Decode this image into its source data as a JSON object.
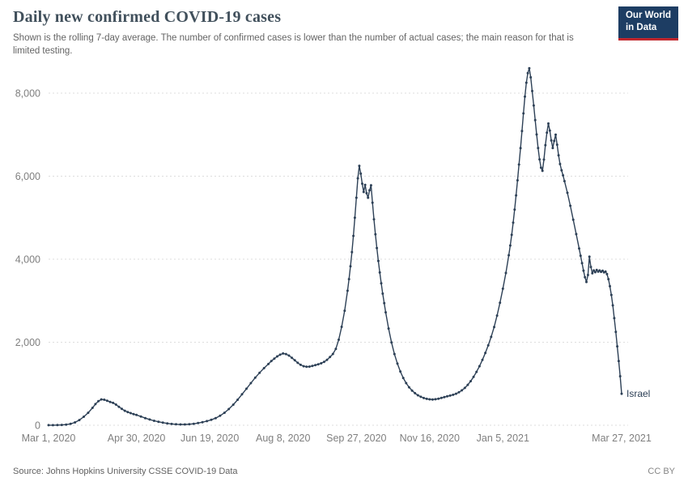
{
  "header": {
    "title": "Daily new confirmed COVID-19 cases",
    "subtitle": "Shown is the rolling 7-day average. The number of confirmed cases is lower than the number of actual cases; the main reason for that is limited testing.",
    "logo": {
      "line1": "Our World",
      "line2": "in Data",
      "bg": "#1d3d63",
      "accent": "#c0262d"
    }
  },
  "footer": {
    "source": "Source: Johns Hopkins University CSSE COVID-19 Data",
    "license": "CC BY"
  },
  "chart_data": {
    "type": "line",
    "title": "Daily new confirmed COVID-19 cases",
    "x_axis": {
      "range_days": [
        0,
        391
      ],
      "ticks": [
        {
          "day": 0,
          "label": "Mar 1, 2020"
        },
        {
          "day": 60,
          "label": "Apr 30, 2020"
        },
        {
          "day": 110,
          "label": "Jun 19, 2020"
        },
        {
          "day": 160,
          "label": "Aug 8, 2020"
        },
        {
          "day": 210,
          "label": "Sep 27, 2020"
        },
        {
          "day": 260,
          "label": "Nov 16, 2020"
        },
        {
          "day": 310,
          "label": "Jan 5, 2021"
        },
        {
          "day": 391,
          "label": "Mar 27, 2021"
        }
      ]
    },
    "y_axis": {
      "range": [
        0,
        8000
      ],
      "ticks": [
        0,
        2000,
        4000,
        6000,
        8000
      ],
      "grid": "dashed"
    },
    "style": {
      "grid_color": "#dddddd",
      "axis_label_color": "#7f7f7f"
    },
    "series": [
      {
        "name": "Israel",
        "color": "#2d4056",
        "points": [
          [
            0,
            1
          ],
          [
            3,
            2
          ],
          [
            6,
            4
          ],
          [
            9,
            8
          ],
          [
            12,
            16
          ],
          [
            15,
            34
          ],
          [
            18,
            68
          ],
          [
            21,
            125
          ],
          [
            24,
            205
          ],
          [
            27,
            300
          ],
          [
            30,
            420
          ],
          [
            32,
            510
          ],
          [
            34,
            580
          ],
          [
            36,
            622
          ],
          [
            38,
            615
          ],
          [
            40,
            592
          ],
          [
            42,
            562
          ],
          [
            44,
            538
          ],
          [
            46,
            498
          ],
          [
            48,
            445
          ],
          [
            50,
            395
          ],
          [
            52,
            350
          ],
          [
            54,
            318
          ],
          [
            56,
            292
          ],
          [
            58,
            268
          ],
          [
            60,
            248
          ],
          [
            63,
            210
          ],
          [
            66,
            172
          ],
          [
            69,
            138
          ],
          [
            72,
            108
          ],
          [
            75,
            84
          ],
          [
            78,
            62
          ],
          [
            81,
            45
          ],
          [
            84,
            32
          ],
          [
            87,
            24
          ],
          [
            90,
            19
          ],
          [
            93,
            20
          ],
          [
            96,
            26
          ],
          [
            99,
            36
          ],
          [
            102,
            52
          ],
          [
            105,
            74
          ],
          [
            108,
            100
          ],
          [
            111,
            130
          ],
          [
            114,
            172
          ],
          [
            117,
            228
          ],
          [
            120,
            300
          ],
          [
            123,
            390
          ],
          [
            126,
            495
          ],
          [
            129,
            615
          ],
          [
            132,
            745
          ],
          [
            135,
            880
          ],
          [
            138,
            1015
          ],
          [
            141,
            1145
          ],
          [
            144,
            1265
          ],
          [
            147,
            1375
          ],
          [
            150,
            1475
          ],
          [
            152,
            1545
          ],
          [
            154,
            1605
          ],
          [
            156,
            1658
          ],
          [
            158,
            1700
          ],
          [
            160,
            1728
          ],
          [
            162,
            1715
          ],
          [
            164,
            1678
          ],
          [
            166,
            1625
          ],
          [
            168,
            1565
          ],
          [
            170,
            1505
          ],
          [
            172,
            1455
          ],
          [
            174,
            1422
          ],
          [
            176,
            1408
          ],
          [
            178,
            1412
          ],
          [
            180,
            1428
          ],
          [
            182,
            1448
          ],
          [
            184,
            1470
          ],
          [
            186,
            1492
          ],
          [
            188,
            1525
          ],
          [
            190,
            1575
          ],
          [
            192,
            1642
          ],
          [
            194,
            1718
          ],
          [
            196,
            1840
          ],
          [
            198,
            2060
          ],
          [
            200,
            2370
          ],
          [
            202,
            2760
          ],
          [
            204,
            3240
          ],
          [
            205,
            3520
          ],
          [
            206,
            3830
          ],
          [
            207,
            4170
          ],
          [
            208,
            4560
          ],
          [
            209,
            5000
          ],
          [
            210,
            5480
          ],
          [
            211,
            5950
          ],
          [
            212,
            6250
          ],
          [
            213,
            6060
          ],
          [
            214,
            5820
          ],
          [
            215,
            5620
          ],
          [
            216,
            5790
          ],
          [
            217,
            5590
          ],
          [
            218,
            5480
          ],
          [
            219,
            5660
          ],
          [
            220,
            5780
          ],
          [
            221,
            5360
          ],
          [
            222,
            4960
          ],
          [
            223,
            4600
          ],
          [
            224,
            4270
          ],
          [
            225,
            3960
          ],
          [
            226,
            3680
          ],
          [
            227,
            3420
          ],
          [
            228,
            3170
          ],
          [
            229,
            2940
          ],
          [
            230,
            2720
          ],
          [
            232,
            2330
          ],
          [
            234,
            1995
          ],
          [
            236,
            1715
          ],
          [
            238,
            1485
          ],
          [
            240,
            1295
          ],
          [
            242,
            1140
          ],
          [
            244,
            1015
          ],
          [
            246,
            915
          ],
          [
            248,
            835
          ],
          [
            250,
            772
          ],
          [
            252,
            722
          ],
          [
            254,
            684
          ],
          [
            256,
            656
          ],
          [
            258,
            637
          ],
          [
            260,
            625
          ],
          [
            262,
            620
          ],
          [
            264,
            626
          ],
          [
            266,
            640
          ],
          [
            268,
            658
          ],
          [
            270,
            678
          ],
          [
            272,
            696
          ],
          [
            274,
            714
          ],
          [
            276,
            734
          ],
          [
            278,
            760
          ],
          [
            280,
            794
          ],
          [
            282,
            840
          ],
          [
            284,
            900
          ],
          [
            286,
            974
          ],
          [
            288,
            1062
          ],
          [
            290,
            1166
          ],
          [
            292,
            1286
          ],
          [
            294,
            1422
          ],
          [
            296,
            1574
          ],
          [
            298,
            1740
          ],
          [
            300,
            1924
          ],
          [
            302,
            2128
          ],
          [
            304,
            2366
          ],
          [
            306,
            2642
          ],
          [
            308,
            2950
          ],
          [
            310,
            3290
          ],
          [
            312,
            3668
          ],
          [
            314,
            4096
          ],
          [
            315,
            4330
          ],
          [
            316,
            4588
          ],
          [
            317,
            4880
          ],
          [
            318,
            5196
          ],
          [
            319,
            5538
          ],
          [
            320,
            5900
          ],
          [
            321,
            6280
          ],
          [
            322,
            6676
          ],
          [
            323,
            7088
          ],
          [
            324,
            7512
          ],
          [
            325,
            7916
          ],
          [
            326,
            8252
          ],
          [
            327,
            8484
          ],
          [
            328,
            8600
          ],
          [
            329,
            8380
          ],
          [
            330,
            8050
          ],
          [
            331,
            7704
          ],
          [
            332,
            7352
          ],
          [
            333,
            7004
          ],
          [
            334,
            6680
          ],
          [
            335,
            6404
          ],
          [
            336,
            6204
          ],
          [
            337,
            6128
          ],
          [
            338,
            6400
          ],
          [
            339,
            6748
          ],
          [
            340,
            7048
          ],
          [
            341,
            7268
          ],
          [
            342,
            7096
          ],
          [
            343,
            6860
          ],
          [
            344,
            6680
          ],
          [
            345,
            6848
          ],
          [
            346,
            7000
          ],
          [
            347,
            6760
          ],
          [
            348,
            6504
          ],
          [
            349,
            6292
          ],
          [
            350,
            6140
          ],
          [
            351,
            6020
          ],
          [
            352,
            5880
          ],
          [
            354,
            5600
          ],
          [
            356,
            5288
          ],
          [
            358,
            4952
          ],
          [
            360,
            4604
          ],
          [
            362,
            4260
          ],
          [
            363,
            4084
          ],
          [
            364,
            3904
          ],
          [
            365,
            3724
          ],
          [
            366,
            3564
          ],
          [
            367,
            3452
          ],
          [
            368,
            3620
          ],
          [
            369,
            4060
          ],
          [
            370,
            3812
          ],
          [
            371,
            3660
          ],
          [
            372,
            3728
          ],
          [
            373,
            3688
          ],
          [
            374,
            3740
          ],
          [
            375,
            3700
          ],
          [
            376,
            3728
          ],
          [
            377,
            3696
          ],
          [
            378,
            3720
          ],
          [
            379,
            3684
          ],
          [
            380,
            3704
          ],
          [
            381,
            3640
          ],
          [
            382,
            3520
          ],
          [
            383,
            3348
          ],
          [
            384,
            3140
          ],
          [
            385,
            2888
          ],
          [
            386,
            2580
          ],
          [
            387,
            2248
          ],
          [
            388,
            1900
          ],
          [
            389,
            1548
          ],
          [
            390,
            1180
          ],
          [
            391,
            760
          ]
        ]
      }
    ]
  }
}
